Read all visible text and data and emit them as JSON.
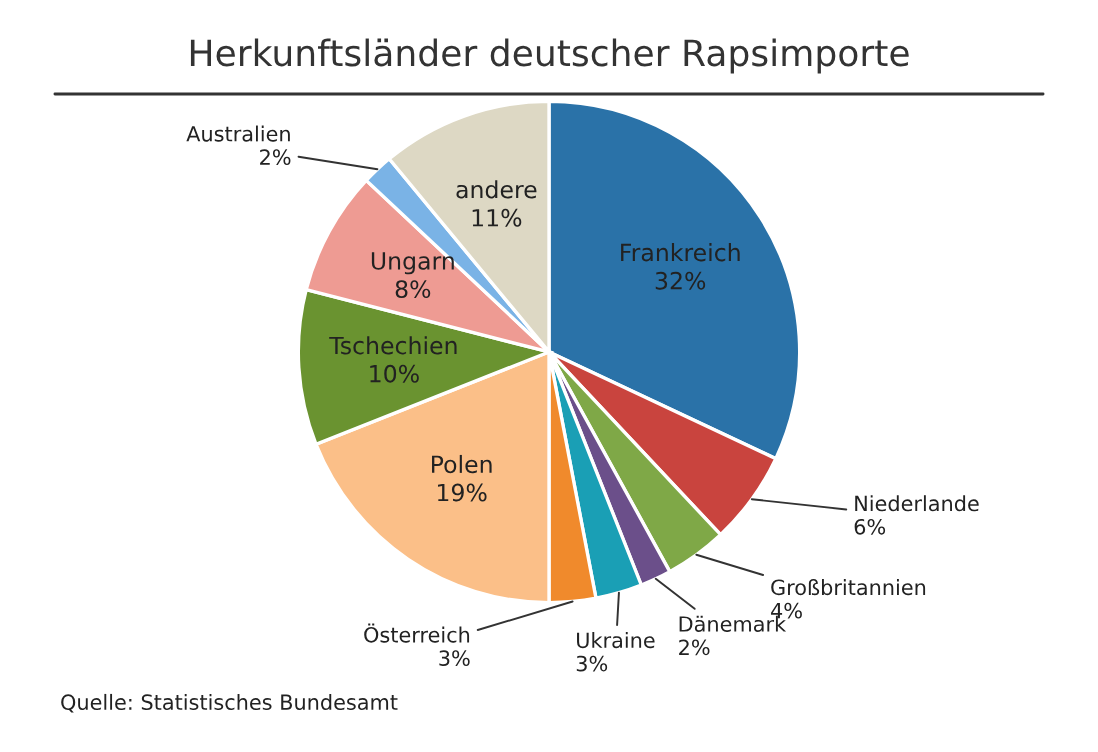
{
  "chart_data": {
    "type": "pie",
    "title": "Herkunftsländer deutscher Rapsimporte",
    "categories": [
      "Frankreich",
      "Niederlande",
      "Großbritannien",
      "Dänemark",
      "Ukraine",
      "Österreich",
      "Polen",
      "Tschechien",
      "Ungarn",
      "Australien",
      "andere"
    ],
    "values": [
      32,
      6,
      4,
      2,
      3,
      3,
      19,
      10,
      8,
      2,
      11
    ],
    "value_labels": [
      "32%",
      "6%",
      "4%",
      "2%",
      "3%",
      "3%",
      "19%",
      "10%",
      "8%",
      "2%",
      "11%"
    ],
    "colors": [
      "#2a72a8",
      "#c9443e",
      "#7fa847",
      "#6b4f8a",
      "#1a9fb5",
      "#f08a2c",
      "#fbbf88",
      "#6a9330",
      "#ee9b93",
      "#7ab3e6",
      "#ddd8c4"
    ],
    "annotations": [
      "Quelle: Statistisches Bundesamt"
    ]
  }
}
